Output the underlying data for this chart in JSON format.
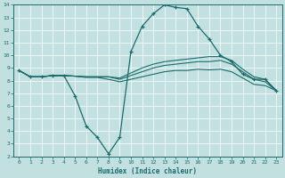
{
  "xlabel": "Humidex (Indice chaleur)",
  "xlim": [
    -0.5,
    23.5
  ],
  "ylim": [
    2,
    14
  ],
  "xticks": [
    0,
    1,
    2,
    3,
    4,
    5,
    6,
    7,
    8,
    9,
    10,
    11,
    12,
    13,
    14,
    15,
    16,
    17,
    18,
    19,
    20,
    21,
    22,
    23
  ],
  "yticks": [
    2,
    3,
    4,
    5,
    6,
    7,
    8,
    9,
    10,
    11,
    12,
    13,
    14
  ],
  "bg_color": "#c2e0e0",
  "line_color": "#1a6b6b",
  "grid_color": "#ffffff",
  "line1_x": [
    0,
    1,
    2,
    3,
    4,
    5,
    6,
    7,
    8,
    9,
    10,
    11,
    12,
    13,
    14,
    15,
    16,
    17,
    18,
    19,
    20,
    21,
    22,
    23
  ],
  "line1_y": [
    8.8,
    8.3,
    8.3,
    8.4,
    8.4,
    6.8,
    4.4,
    3.5,
    2.2,
    3.5,
    10.3,
    12.3,
    13.3,
    14.0,
    13.8,
    13.7,
    12.3,
    11.3,
    10.0,
    9.5,
    8.5,
    8.1,
    8.1,
    7.2
  ],
  "line2_x": [
    0,
    1,
    2,
    3,
    4,
    5,
    6,
    7,
    8,
    9,
    10,
    11,
    12,
    13,
    14,
    15,
    16,
    17,
    18,
    19,
    20,
    21,
    22,
    23
  ],
  "line2_y": [
    8.8,
    8.3,
    8.3,
    8.4,
    8.4,
    8.35,
    8.3,
    8.3,
    8.3,
    8.2,
    8.6,
    9.0,
    9.3,
    9.5,
    9.6,
    9.7,
    9.8,
    9.9,
    9.9,
    9.6,
    8.9,
    8.3,
    8.1,
    7.2
  ],
  "line3_x": [
    0,
    1,
    2,
    3,
    4,
    5,
    6,
    7,
    8,
    9,
    10,
    11,
    12,
    13,
    14,
    15,
    16,
    17,
    18,
    19,
    20,
    21,
    22,
    23
  ],
  "line3_y": [
    8.8,
    8.3,
    8.3,
    8.4,
    8.4,
    8.35,
    8.3,
    8.3,
    8.3,
    8.1,
    8.4,
    8.7,
    9.0,
    9.2,
    9.3,
    9.4,
    9.5,
    9.5,
    9.6,
    9.3,
    8.7,
    8.1,
    7.9,
    7.2
  ],
  "line4_x": [
    0,
    1,
    2,
    3,
    4,
    5,
    6,
    7,
    8,
    9,
    10,
    11,
    12,
    13,
    14,
    15,
    16,
    17,
    18,
    19,
    20,
    21,
    22,
    23
  ],
  "line4_y": [
    8.8,
    8.3,
    8.3,
    8.4,
    8.4,
    8.35,
    8.25,
    8.25,
    8.1,
    7.9,
    8.1,
    8.3,
    8.5,
    8.7,
    8.8,
    8.8,
    8.9,
    8.85,
    8.9,
    8.7,
    8.2,
    7.7,
    7.6,
    7.2
  ]
}
